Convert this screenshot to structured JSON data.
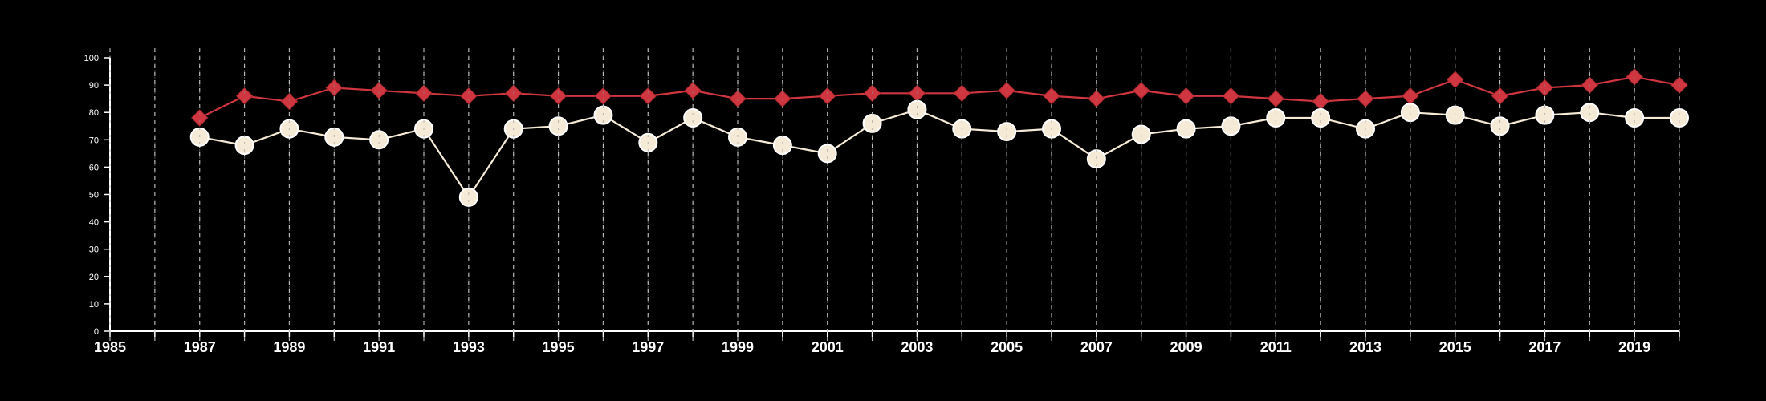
{
  "chart_data": {
    "type": "line",
    "x": [
      1987,
      1988,
      1989,
      1990,
      1991,
      1992,
      1993,
      1994,
      1995,
      1996,
      1997,
      1998,
      1999,
      2000,
      2001,
      2002,
      2003,
      2004,
      2005,
      2006,
      2007,
      2008,
      2009,
      2010,
      2011,
      2012,
      2013,
      2014,
      2015,
      2016,
      2017,
      2018,
      2019,
      2020
    ],
    "series": [
      {
        "color": "#d0363f",
        "marker": "diamond",
        "values": [
          78,
          86,
          84,
          89,
          88,
          87,
          86,
          87,
          86,
          86,
          86,
          88,
          85,
          85,
          86,
          87,
          87,
          87,
          88,
          86,
          85,
          88,
          86,
          86,
          85,
          84,
          85,
          86,
          92,
          86,
          89,
          90,
          93,
          90
        ]
      },
      {
        "color": "#f5ead6",
        "marker": "circle",
        "values": [
          71,
          68,
          74,
          71,
          70,
          74,
          49,
          74,
          75,
          79,
          69,
          78,
          71,
          68,
          65,
          76,
          81,
          74,
          73,
          74,
          63,
          72,
          74,
          75,
          78,
          78,
          74,
          80,
          79,
          75,
          79,
          80,
          78,
          78
        ]
      }
    ],
    "xlim": [
      1985,
      2020
    ],
    "ylim": [
      0,
      100
    ],
    "x_ticks": [
      "1985",
      "1987",
      "1989",
      "1991",
      "1993",
      "1995",
      "1997",
      "1999",
      "2001",
      "2003",
      "2005",
      "2007",
      "2009",
      "2011",
      "2013",
      "2015",
      "2017",
      "2019"
    ],
    "y_ticks": [
      "0",
      "10",
      "20",
      "30",
      "40",
      "50",
      "60",
      "70",
      "80",
      "90",
      "100"
    ],
    "grid": "vertical dashed",
    "background": "#000000",
    "axis_color": "#ffffff"
  }
}
